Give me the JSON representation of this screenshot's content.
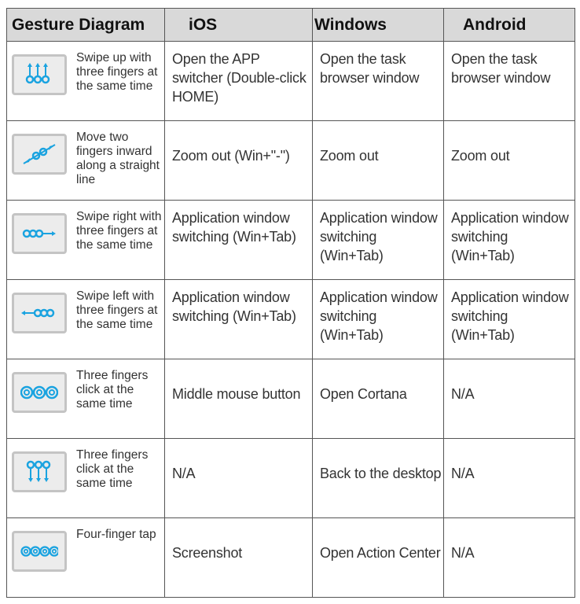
{
  "headers": [
    "Gesture Diagram",
    "iOS",
    "Windows",
    "Android"
  ],
  "accent_color": "#1aa3e0",
  "rows": [
    {
      "icon": "three-finger-swipe-up-icon",
      "gesture": "Swipe up with three fingers at the same time",
      "ios": "Open the APP switcher (Double-click HOME)",
      "windows": "Open the task browser window",
      "android": "Open the task browser window"
    },
    {
      "icon": "pinch-in-icon",
      "gesture": "Move two fingers inward along a straight line",
      "ios": "Zoom out (Win+\"-\")",
      "windows": "Zoom out",
      "android": "Zoom out"
    },
    {
      "icon": "three-finger-swipe-right-icon",
      "gesture": "Swipe right with three fingers at the same time",
      "ios": "Application window switching (Win+Tab)",
      "windows": "Application window switching (Win+Tab)",
      "android": "Application window switching (Win+Tab)"
    },
    {
      "icon": "three-finger-swipe-left-icon",
      "gesture": "Swipe left with three fingers at the same time",
      "ios": "Application window switching (Win+Tab)",
      "windows": "Application window switching (Win+Tab)",
      "android": "Application window switching (Win+Tab)"
    },
    {
      "icon": "three-finger-click-icon",
      "gesture": "Three fingers click at the same time",
      "ios": "Middle mouse button",
      "windows": "Open Cortana",
      "android": "N/A"
    },
    {
      "icon": "three-finger-swipe-down-icon",
      "gesture": "Three fingers click at the same time",
      "ios": "N/A",
      "windows": "Back to the desktop",
      "android": "N/A"
    },
    {
      "icon": "four-finger-tap-icon",
      "gesture": "Four-finger tap",
      "ios": "Screenshot",
      "windows": "Open Action Center",
      "android": "N/A"
    }
  ]
}
